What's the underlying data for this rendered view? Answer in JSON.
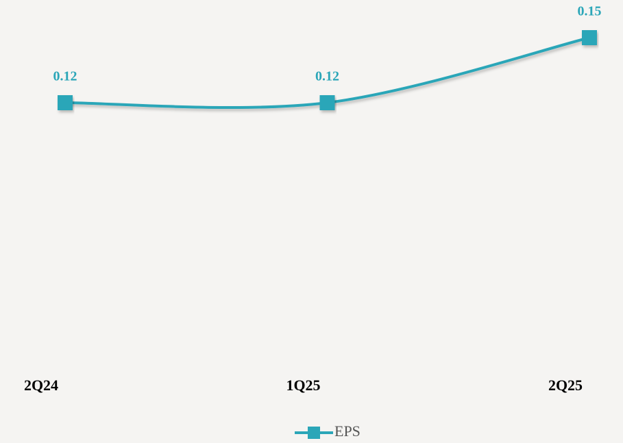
{
  "chart_data": {
    "type": "line",
    "categories": [
      "2Q24",
      "1Q25",
      "2Q25"
    ],
    "series": [
      {
        "name": "EPS",
        "color": "#2ba6b8",
        "values": [
          0.12,
          0.12,
          0.15
        ]
      }
    ],
    "ylim": [
      0,
      0.15
    ],
    "legend": "bottom"
  }
}
